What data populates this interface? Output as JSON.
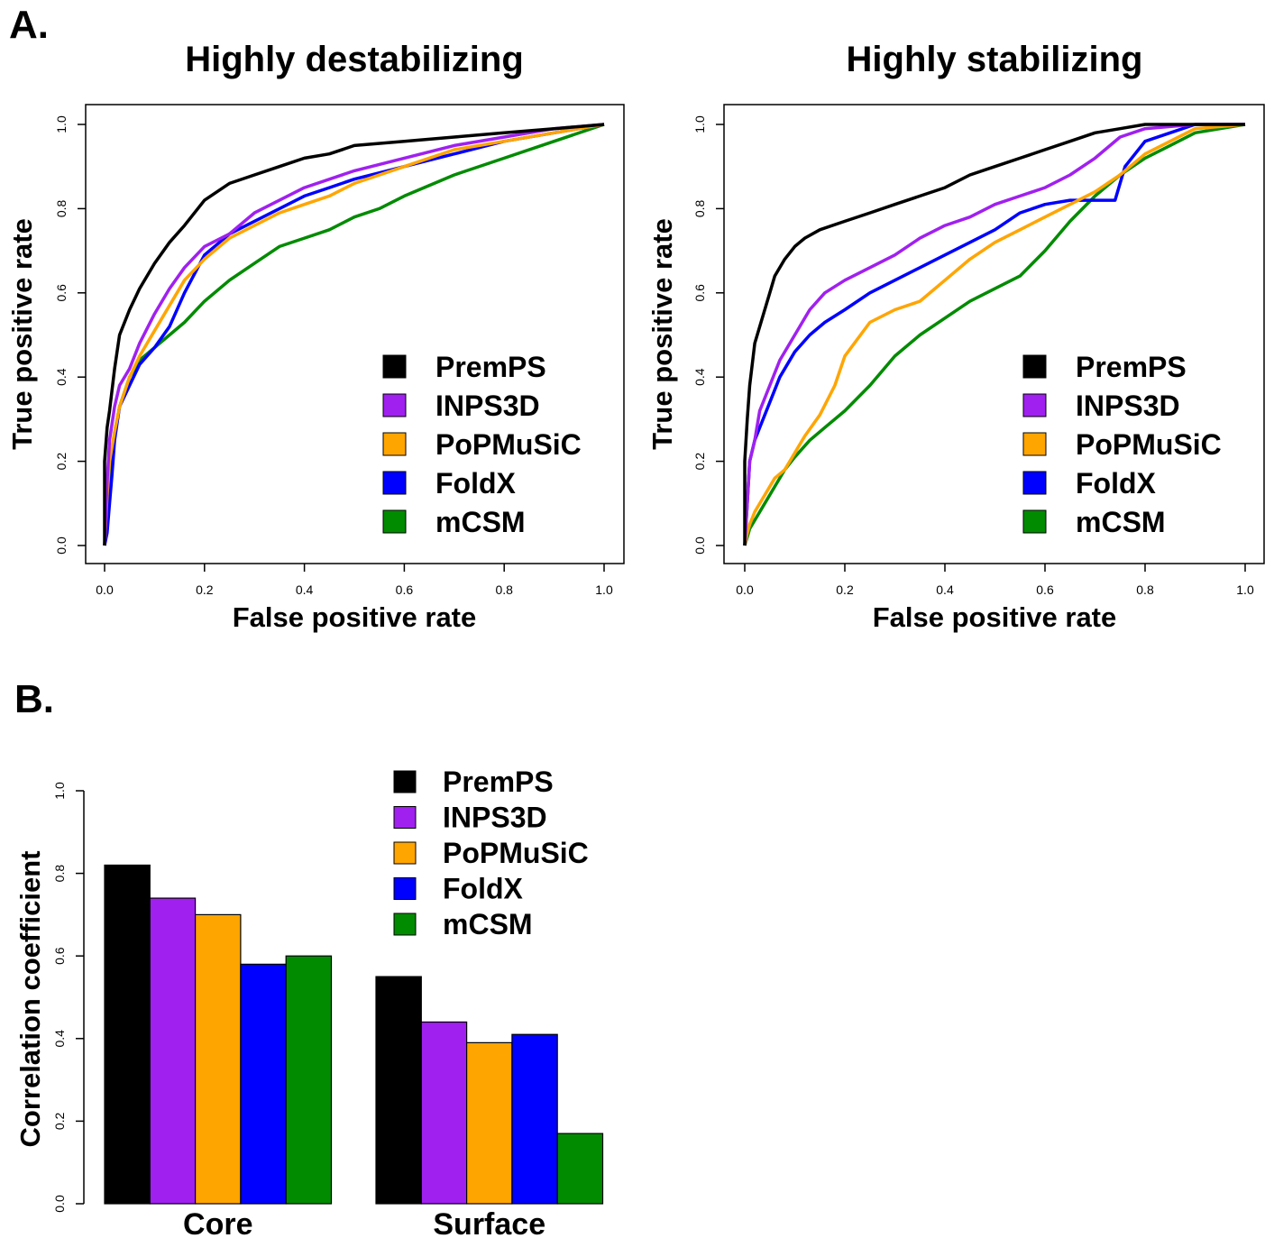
{
  "panels": {
    "a_label": "A.",
    "b_label": "B."
  },
  "chart_data": [
    {
      "type": "line",
      "title": "Highly destabilizing",
      "xlabel": "False positive rate",
      "ylabel": "True positive rate",
      "xlim": [
        0,
        1
      ],
      "ylim": [
        0,
        1
      ],
      "xticks": [
        "0.0",
        "0.2",
        "0.4",
        "0.6",
        "0.8",
        "1.0"
      ],
      "yticks": [
        "0.0",
        "0.2",
        "0.4",
        "0.6",
        "0.8",
        "1.0"
      ],
      "legend": "bottom-right",
      "series": [
        {
          "name": "PremPS",
          "color": "#000000",
          "x": [
            0,
            0,
            0.005,
            0.01,
            0.02,
            0.03,
            0.05,
            0.07,
            0.1,
            0.13,
            0.16,
            0.2,
            0.25,
            0.3,
            0.35,
            0.4,
            0.45,
            0.5,
            0.6,
            0.7,
            0.8,
            0.9,
            1
          ],
          "y": [
            0,
            0.2,
            0.28,
            0.32,
            0.42,
            0.5,
            0.56,
            0.61,
            0.67,
            0.72,
            0.76,
            0.82,
            0.86,
            0.88,
            0.9,
            0.92,
            0.93,
            0.95,
            0.96,
            0.97,
            0.98,
            0.99,
            1
          ]
        },
        {
          "name": "INPS3D",
          "color": "#a020f0",
          "x": [
            0,
            0.005,
            0.01,
            0.02,
            0.03,
            0.05,
            0.07,
            0.1,
            0.13,
            0.16,
            0.2,
            0.25,
            0.3,
            0.35,
            0.4,
            0.5,
            0.6,
            0.7,
            0.8,
            0.9,
            1
          ],
          "y": [
            0,
            0.15,
            0.25,
            0.33,
            0.38,
            0.42,
            0.48,
            0.55,
            0.61,
            0.66,
            0.71,
            0.74,
            0.79,
            0.82,
            0.85,
            0.89,
            0.92,
            0.95,
            0.97,
            0.99,
            1
          ]
        },
        {
          "name": "PoPMuSiC",
          "color": "#ffa500",
          "x": [
            0,
            0.005,
            0.01,
            0.02,
            0.03,
            0.05,
            0.07,
            0.1,
            0.13,
            0.16,
            0.2,
            0.25,
            0.3,
            0.35,
            0.4,
            0.45,
            0.5,
            0.6,
            0.7,
            0.8,
            0.9,
            1
          ],
          "y": [
            0,
            0.12,
            0.2,
            0.27,
            0.33,
            0.4,
            0.45,
            0.51,
            0.57,
            0.63,
            0.68,
            0.73,
            0.76,
            0.79,
            0.81,
            0.83,
            0.86,
            0.9,
            0.94,
            0.96,
            0.98,
            1
          ]
        },
        {
          "name": "FoldX",
          "color": "#0000ff",
          "x": [
            0,
            0.005,
            0.01,
            0.015,
            0.02,
            0.03,
            0.05,
            0.07,
            0.1,
            0.13,
            0.16,
            0.2,
            0.25,
            0.3,
            0.35,
            0.4,
            0.45,
            0.5,
            0.6,
            0.7,
            0.8,
            0.9,
            1
          ],
          "y": [
            0,
            0.03,
            0.1,
            0.17,
            0.25,
            0.33,
            0.38,
            0.43,
            0.47,
            0.52,
            0.6,
            0.69,
            0.74,
            0.77,
            0.8,
            0.83,
            0.85,
            0.87,
            0.9,
            0.93,
            0.96,
            0.98,
            1
          ]
        },
        {
          "name": "mCSM",
          "color": "#008b00",
          "x": [
            0,
            0.005,
            0.01,
            0.015,
            0.02,
            0.03,
            0.05,
            0.07,
            0.1,
            0.13,
            0.16,
            0.2,
            0.25,
            0.3,
            0.35,
            0.4,
            0.45,
            0.5,
            0.55,
            0.6,
            0.7,
            0.8,
            0.9,
            1
          ],
          "y": [
            0,
            0.08,
            0.15,
            0.21,
            0.27,
            0.33,
            0.4,
            0.44,
            0.47,
            0.5,
            0.53,
            0.58,
            0.63,
            0.67,
            0.71,
            0.73,
            0.75,
            0.78,
            0.8,
            0.83,
            0.88,
            0.92,
            0.96,
            1
          ]
        }
      ]
    },
    {
      "type": "line",
      "title": "Highly stabilizing",
      "xlabel": "False positive rate",
      "ylabel": "True positive rate",
      "xlim": [
        0,
        1
      ],
      "ylim": [
        0,
        1
      ],
      "xticks": [
        "0.0",
        "0.2",
        "0.4",
        "0.6",
        "0.8",
        "1.0"
      ],
      "yticks": [
        "0.0",
        "0.2",
        "0.4",
        "0.6",
        "0.8",
        "1.0"
      ],
      "legend": "bottom-right",
      "series": [
        {
          "name": "PremPS",
          "color": "#000000",
          "x": [
            0,
            0,
            0.005,
            0.01,
            0.015,
            0.02,
            0.03,
            0.04,
            0.05,
            0.06,
            0.08,
            0.1,
            0.12,
            0.15,
            0.2,
            0.25,
            0.3,
            0.35,
            0.4,
            0.45,
            0.5,
            0.55,
            0.6,
            0.65,
            0.7,
            0.75,
            0.8,
            0.9,
            1
          ],
          "y": [
            0,
            0.2,
            0.3,
            0.38,
            0.43,
            0.48,
            0.52,
            0.56,
            0.6,
            0.64,
            0.68,
            0.71,
            0.73,
            0.75,
            0.77,
            0.79,
            0.81,
            0.83,
            0.85,
            0.88,
            0.9,
            0.92,
            0.94,
            0.96,
            0.98,
            0.99,
            1,
            1,
            1
          ]
        },
        {
          "name": "INPS3D",
          "color": "#a020f0",
          "x": [
            0,
            0.005,
            0.01,
            0.02,
            0.03,
            0.05,
            0.07,
            0.1,
            0.13,
            0.16,
            0.2,
            0.25,
            0.3,
            0.35,
            0.4,
            0.45,
            0.5,
            0.55,
            0.6,
            0.65,
            0.7,
            0.75,
            0.8,
            0.9,
            1
          ],
          "y": [
            0,
            0.1,
            0.2,
            0.25,
            0.32,
            0.38,
            0.44,
            0.5,
            0.56,
            0.6,
            0.63,
            0.66,
            0.69,
            0.73,
            0.76,
            0.78,
            0.81,
            0.83,
            0.85,
            0.88,
            0.92,
            0.97,
            0.99,
            1,
            1
          ]
        },
        {
          "name": "PoPMuSiC",
          "color": "#ffa500",
          "x": [
            0,
            0.005,
            0.01,
            0.02,
            0.04,
            0.06,
            0.08,
            0.1,
            0.12,
            0.15,
            0.18,
            0.2,
            0.25,
            0.3,
            0.35,
            0.4,
            0.45,
            0.5,
            0.55,
            0.6,
            0.65,
            0.7,
            0.75,
            0.8,
            0.85,
            0.9,
            1
          ],
          "y": [
            0,
            0.03,
            0.05,
            0.08,
            0.12,
            0.16,
            0.18,
            0.22,
            0.26,
            0.31,
            0.38,
            0.45,
            0.53,
            0.56,
            0.58,
            0.63,
            0.68,
            0.72,
            0.75,
            0.78,
            0.81,
            0.84,
            0.88,
            0.93,
            0.96,
            0.99,
            1
          ]
        },
        {
          "name": "FoldX",
          "color": "#0000ff",
          "x": [
            0,
            0.005,
            0.01,
            0.02,
            0.03,
            0.05,
            0.07,
            0.1,
            0.13,
            0.16,
            0.2,
            0.25,
            0.3,
            0.35,
            0.4,
            0.45,
            0.5,
            0.55,
            0.6,
            0.65,
            0.7,
            0.74,
            0.76,
            0.8,
            0.85,
            0.9,
            1
          ],
          "y": [
            0,
            0.1,
            0.2,
            0.25,
            0.28,
            0.34,
            0.4,
            0.46,
            0.5,
            0.53,
            0.56,
            0.6,
            0.63,
            0.66,
            0.69,
            0.72,
            0.75,
            0.79,
            0.81,
            0.82,
            0.82,
            0.82,
            0.9,
            0.96,
            0.98,
            1,
            1
          ]
        },
        {
          "name": "mCSM",
          "color": "#008b00",
          "x": [
            0,
            0.005,
            0.01,
            0.02,
            0.04,
            0.06,
            0.08,
            0.1,
            0.13,
            0.16,
            0.2,
            0.25,
            0.3,
            0.35,
            0.4,
            0.45,
            0.5,
            0.55,
            0.6,
            0.65,
            0.7,
            0.75,
            0.8,
            0.85,
            0.9,
            1
          ],
          "y": [
            0,
            0.02,
            0.04,
            0.06,
            0.1,
            0.14,
            0.18,
            0.21,
            0.25,
            0.28,
            0.32,
            0.38,
            0.45,
            0.5,
            0.54,
            0.58,
            0.61,
            0.64,
            0.7,
            0.77,
            0.83,
            0.88,
            0.92,
            0.95,
            0.98,
            1
          ]
        }
      ]
    },
    {
      "type": "bar",
      "xlabel": "",
      "ylabel": "Correlation coefficient",
      "ylim": [
        0,
        1
      ],
      "yticks": [
        "0.0",
        "0.2",
        "0.4",
        "0.6",
        "0.8",
        "1.0"
      ],
      "legend": "top-center",
      "categories": [
        "Core",
        "Surface"
      ],
      "series": [
        {
          "name": "PremPS",
          "color": "#000000",
          "values": [
            0.82,
            0.55
          ]
        },
        {
          "name": "INPS3D",
          "color": "#a020f0",
          "values": [
            0.74,
            0.44
          ]
        },
        {
          "name": "PoPMuSiC",
          "color": "#ffa500",
          "values": [
            0.7,
            0.39
          ]
        },
        {
          "name": "FoldX",
          "color": "#0000ff",
          "values": [
            0.58,
            0.41
          ]
        },
        {
          "name": "mCSM",
          "color": "#008b00",
          "values": [
            0.6,
            0.17
          ]
        }
      ]
    }
  ]
}
